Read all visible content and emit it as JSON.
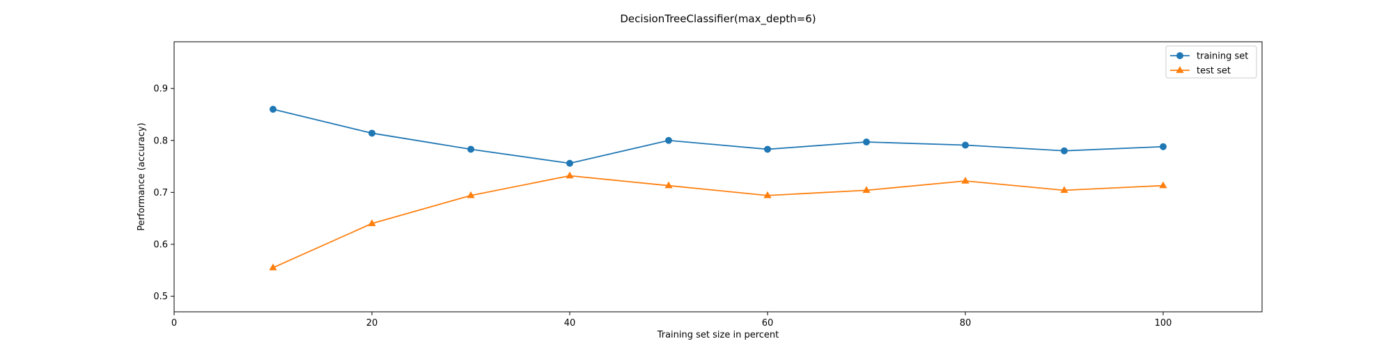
{
  "chart_data": {
    "type": "line",
    "title": "DecisionTreeClassifier(max_depth=6)",
    "xlabel": "Training set size in percent",
    "ylabel": "Performance (accuracy)",
    "xlim": [
      0,
      110
    ],
    "ylim": [
      0.47,
      0.99
    ],
    "xticks": [
      0,
      20,
      40,
      60,
      80,
      100
    ],
    "yticks": [
      0.5,
      0.6,
      0.7,
      0.8,
      0.9
    ],
    "x": [
      10,
      20,
      30,
      40,
      50,
      60,
      70,
      80,
      90,
      100
    ],
    "series": [
      {
        "name": "training set",
        "color": "#1f77b4",
        "marker": "circle",
        "values": [
          0.86,
          0.814,
          0.783,
          0.756,
          0.8,
          0.783,
          0.797,
          0.791,
          0.78,
          0.788
        ]
      },
      {
        "name": "test set",
        "color": "#ff7f0e",
        "marker": "triangle",
        "values": [
          0.555,
          0.64,
          0.694,
          0.732,
          0.713,
          0.694,
          0.704,
          0.722,
          0.704,
          0.713
        ]
      }
    ],
    "grid": false,
    "legend_position": "top-right"
  }
}
